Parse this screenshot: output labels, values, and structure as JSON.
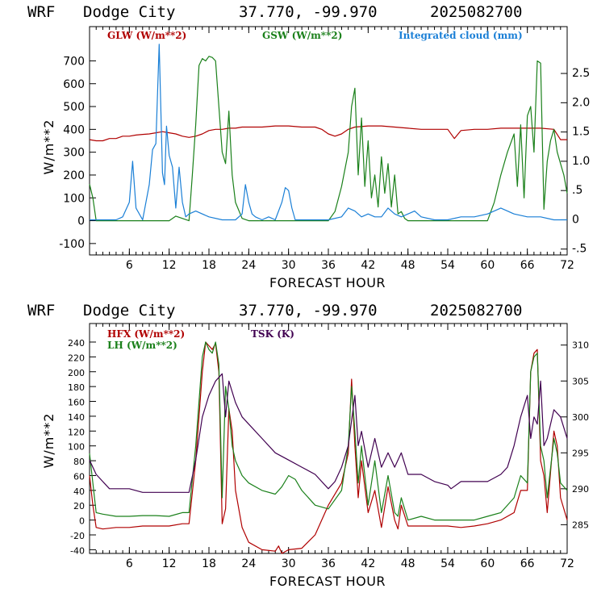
{
  "colors": {
    "red": "#b00000",
    "green": "#1a801a",
    "blue": "#1a7fd6",
    "purple": "#400050",
    "axis": "#000000"
  },
  "chart_data": [
    {
      "type": "line",
      "header": {
        "model": "WRF",
        "station": "Dodge City",
        "coords": "37.770, -99.970",
        "init": "2025082700"
      },
      "xlabel": "FORECAST HOUR",
      "ylabel": "W/m**2",
      "xlim": [
        0,
        72
      ],
      "ylim": [
        -150,
        850
      ],
      "xticks": [
        "6",
        "12",
        "18",
        "24",
        "30",
        "36",
        "42",
        "48",
        "54",
        "60",
        "66",
        "72"
      ],
      "yticks": [
        "-100",
        "0",
        "100",
        "200",
        "300",
        "400",
        "500",
        "600",
        "700"
      ],
      "y2lim": [
        -0.6,
        3.3
      ],
      "y2ticks": [
        "-.5",
        "0",
        ".5",
        "1.0",
        "1.5",
        "2.0",
        "2.5"
      ],
      "series": [
        {
          "name": "GLW (W/m**2)",
          "color": "red",
          "axis": "left",
          "x": [
            0,
            1,
            2,
            3,
            4,
            5,
            6,
            7,
            8,
            9,
            10,
            11,
            12,
            13,
            14,
            15,
            16,
            17,
            18,
            19,
            20,
            21,
            22,
            23,
            24,
            26,
            28,
            30,
            32,
            34,
            35,
            36,
            37,
            38,
            39,
            40,
            42,
            44,
            46,
            48,
            50,
            52,
            54,
            55,
            56,
            58,
            60,
            62,
            64,
            66,
            68,
            70,
            71,
            72
          ],
          "values": [
            355,
            350,
            350,
            360,
            360,
            370,
            370,
            375,
            378,
            380,
            385,
            390,
            385,
            380,
            370,
            365,
            370,
            380,
            395,
            400,
            400,
            405,
            405,
            410,
            410,
            410,
            415,
            415,
            410,
            410,
            400,
            380,
            370,
            380,
            400,
            410,
            415,
            415,
            410,
            405,
            400,
            400,
            400,
            360,
            395,
            400,
            400,
            405,
            405,
            405,
            405,
            400,
            355,
            355
          ]
        },
        {
          "name": "GSW (W/m**2)",
          "color": "green",
          "axis": "left",
          "x": [
            0,
            0.5,
            1,
            2,
            12,
            13,
            15,
            15.5,
            16,
            16.5,
            17,
            17.5,
            18,
            18.5,
            19,
            19.5,
            20,
            20.5,
            21,
            21.5,
            22,
            23,
            24,
            25,
            36,
            37,
            38,
            39,
            39.5,
            40,
            40.5,
            41,
            41.5,
            42,
            42.5,
            43,
            43.5,
            44,
            44.5,
            45,
            45.5,
            46,
            46.5,
            47,
            47.5,
            48,
            60,
            61,
            62,
            63,
            64,
            64.5,
            65,
            65.5,
            66,
            66.5,
            67,
            67.5,
            68,
            68.5,
            69,
            69.5,
            70,
            70.5,
            71,
            71.5,
            72
          ],
          "values": [
            160,
            100,
            0,
            0,
            0,
            20,
            0,
            200,
            420,
            680,
            710,
            700,
            720,
            715,
            700,
            500,
            300,
            250,
            480,
            200,
            80,
            10,
            0,
            0,
            0,
            40,
            150,
            300,
            500,
            580,
            200,
            450,
            150,
            350,
            100,
            200,
            60,
            280,
            120,
            250,
            60,
            200,
            30,
            40,
            10,
            0,
            0,
            80,
            200,
            300,
            380,
            150,
            420,
            100,
            460,
            500,
            300,
            700,
            690,
            50,
            260,
            350,
            400,
            300,
            250,
            200,
            120
          ]
        },
        {
          "name": "Integrated cloud (mm)",
          "color": "blue",
          "axis": "right",
          "x": [
            0,
            4,
            5,
            6,
            6.5,
            7,
            8,
            9,
            9.5,
            10,
            10.5,
            11,
            11.3,
            11.6,
            12,
            12.5,
            13,
            13.5,
            14,
            14.5,
            15,
            16,
            18,
            20,
            22,
            23,
            23.5,
            24,
            24.5,
            25,
            26,
            27,
            28,
            29,
            29.5,
            30,
            30.5,
            31,
            32,
            36,
            38,
            39,
            40,
            41,
            42,
            43,
            44,
            45,
            46,
            47,
            48,
            49,
            50,
            52,
            53,
            54,
            56,
            58,
            60,
            62,
            63,
            64,
            66,
            68,
            70,
            72
          ],
          "values": [
            0,
            0,
            0.05,
            0.3,
            1.0,
            0.2,
            0.0,
            0.6,
            1.2,
            1.3,
            3.0,
            0.8,
            0.6,
            1.6,
            1.1,
            0.9,
            0.2,
            0.9,
            0.3,
            0.05,
            0.1,
            0.15,
            0.05,
            0.0,
            0.0,
            0.1,
            0.6,
            0.3,
            0.1,
            0.05,
            0.0,
            0.05,
            0.0,
            0.3,
            0.55,
            0.5,
            0.2,
            0.0,
            0.0,
            0.0,
            0.05,
            0.2,
            0.15,
            0.05,
            0.1,
            0.05,
            0.05,
            0.2,
            0.1,
            0.05,
            0.1,
            0.15,
            0.05,
            0.0,
            0.0,
            0.0,
            0.05,
            0.05,
            0.1,
            0.2,
            0.15,
            0.1,
            0.05,
            0.05,
            0.0,
            0.0
          ]
        }
      ]
    },
    {
      "type": "line",
      "header": {
        "model": "WRF",
        "station": "Dodge City",
        "coords": "37.770, -99.970",
        "init": "2025082700"
      },
      "xlabel": "FORECAST HOUR",
      "ylabel": "W/m**2",
      "xlim": [
        0,
        72
      ],
      "ylim": [
        -45,
        265
      ],
      "xticks": [
        "6",
        "12",
        "18",
        "24",
        "30",
        "36",
        "42",
        "48",
        "54",
        "60",
        "66",
        "72"
      ],
      "yticks": [
        "-40",
        "-20",
        "0",
        "20",
        "40",
        "60",
        "80",
        "100",
        "120",
        "140",
        "160",
        "180",
        "200",
        "220",
        "240"
      ],
      "y2lim": [
        281,
        313
      ],
      "y2ticks": [
        "285",
        "290",
        "295",
        "300",
        "305",
        "310"
      ],
      "series": [
        {
          "name": "HFX (W/m**2)",
          "color": "red",
          "axis": "left",
          "x": [
            0,
            0.5,
            1,
            2,
            4,
            6,
            8,
            10,
            12,
            14,
            15,
            16,
            17,
            17.5,
            18,
            18.5,
            19,
            19.5,
            20,
            20.5,
            21,
            21.5,
            22,
            23,
            24,
            26,
            28,
            28.5,
            29,
            30,
            32,
            34,
            36,
            38,
            39,
            39.5,
            40,
            40.5,
            41,
            42,
            43,
            44,
            45,
            46,
            46.5,
            47,
            48,
            50,
            52,
            54,
            56,
            58,
            60,
            62,
            64,
            65,
            66,
            66.5,
            67,
            67.5,
            68,
            68.5,
            69,
            70,
            70.5,
            71,
            72
          ],
          "values": [
            60,
            20,
            -10,
            -12,
            -10,
            -10,
            -8,
            -8,
            -8,
            -5,
            -5,
            80,
            200,
            240,
            235,
            230,
            238,
            200,
            -5,
            15,
            150,
            120,
            40,
            -10,
            -30,
            -40,
            -42,
            -35,
            -45,
            -40,
            -38,
            -20,
            20,
            50,
            90,
            190,
            100,
            30,
            80,
            10,
            40,
            -10,
            45,
            0,
            -12,
            20,
            -8,
            -8,
            -8,
            -8,
            -10,
            -8,
            -5,
            0,
            10,
            40,
            40,
            200,
            225,
            230,
            80,
            60,
            10,
            120,
            100,
            30,
            0
          ]
        },
        {
          "name": "LH (W/m**2)",
          "color": "green",
          "axis": "left",
          "x": [
            0,
            0.5,
            1,
            2,
            4,
            6,
            8,
            10,
            12,
            14,
            15,
            16,
            17,
            17.5,
            18,
            18.5,
            19,
            19.5,
            20,
            20.5,
            21,
            21.5,
            22,
            23,
            24,
            26,
            28,
            29,
            30,
            31,
            32,
            34,
            36,
            38,
            39,
            39.5,
            40,
            40.5,
            41,
            42,
            43,
            44,
            45,
            46,
            46.5,
            47,
            48,
            50,
            52,
            54,
            56,
            58,
            60,
            62,
            64,
            65,
            66,
            66.5,
            67,
            67.5,
            68,
            68.5,
            69,
            70,
            70.5,
            71,
            72
          ],
          "values": [
            90,
            50,
            10,
            8,
            5,
            5,
            6,
            6,
            5,
            10,
            10,
            100,
            220,
            240,
            230,
            225,
            240,
            210,
            30,
            180,
            150,
            100,
            80,
            60,
            50,
            40,
            35,
            45,
            60,
            55,
            40,
            20,
            15,
            40,
            100,
            180,
            120,
            50,
            100,
            20,
            80,
            10,
            60,
            10,
            5,
            30,
            0,
            5,
            0,
            0,
            0,
            0,
            5,
            10,
            30,
            60,
            50,
            200,
            220,
            225,
            100,
            80,
            30,
            110,
            90,
            50,
            40
          ]
        },
        {
          "name": "TSK (K)",
          "color": "purple",
          "axis": "right",
          "x": [
            0,
            1,
            2,
            3,
            4,
            6,
            8,
            10,
            12,
            14,
            15,
            16,
            17,
            18,
            19,
            20,
            20.5,
            21,
            22,
            23,
            24,
            26,
            28,
            30,
            32,
            34,
            36,
            37,
            38,
            39,
            40,
            40.5,
            41,
            42,
            43,
            44,
            45,
            46,
            47,
            48,
            50,
            52,
            54,
            54.5,
            56,
            58,
            60,
            62,
            63,
            64,
            65,
            66,
            66.5,
            67,
            67.5,
            68,
            68.5,
            69,
            70,
            71,
            72
          ],
          "values": [
            294,
            292,
            291,
            290,
            290,
            290,
            289.5,
            289.5,
            289.5,
            289.5,
            289.5,
            294,
            300,
            303,
            305,
            306,
            300,
            305,
            302,
            300,
            299,
            297,
            295,
            294,
            293,
            292,
            290,
            291,
            293,
            296,
            303,
            296,
            298,
            293,
            297,
            293,
            295,
            293,
            295,
            292,
            292,
            291,
            290.5,
            290,
            291,
            291,
            291,
            292,
            293,
            296,
            300,
            303,
            297,
            300,
            299,
            305,
            296,
            297,
            301,
            300,
            297
          ]
        }
      ]
    }
  ]
}
